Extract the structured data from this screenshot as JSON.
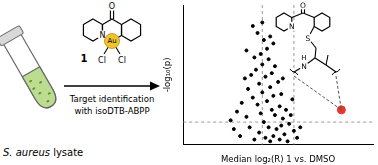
{
  "chart_data": {
    "type": "scatter",
    "x_label": "Median log₂(R) 1 vs. DMSO",
    "y_label": "-log₁₀(p)",
    "x": [
      -0.5,
      -0.3,
      0.1,
      -0.8,
      0.4,
      -1.2,
      -0.1,
      0.6,
      -1.5,
      0.2,
      -0.6,
      -0.9,
      0.3,
      -0.2,
      -1.1,
      0.7,
      -1.8,
      -0.4,
      0.1,
      -1.3,
      -0.7,
      0.5,
      -2.0,
      -0.3,
      -1.0,
      0.2,
      -1.6,
      -0.5,
      -1.2,
      0.0,
      -0.8,
      -1.9,
      -0.4,
      -1.4,
      0.3,
      -1.0,
      -0.6,
      -2.3,
      -1.7,
      -0.2,
      -1.1,
      -0.7,
      -1.5,
      -0.9,
      -1.3,
      -0.5,
      -1.0,
      -2.1,
      -2.6,
      1.0,
      1.2,
      -2.8,
      0.8,
      -2.4,
      0.9,
      -3.0,
      1.4,
      -1.6,
      -0.3,
      -2.0
    ],
    "values": [
      0.2,
      0.5,
      0.3,
      0.4,
      0.6,
      0.7,
      0.9,
      0.2,
      0.3,
      1.1,
      1.0,
      1.3,
      1.5,
      1.7,
      1.8,
      1.2,
      1.0,
      2.0,
      2.2,
      2.3,
      2.5,
      2.0,
      1.6,
      2.8,
      3.0,
      2.9,
      2.7,
      3.3,
      3.5,
      3.6,
      3.9,
      3.2,
      4.1,
      4.3,
      3.8,
      4.6,
      4.9,
      2.4,
      4.0,
      4.5,
      5.2,
      5.5,
      5.0,
      6.0,
      6.4,
      6.2,
      7.0,
      3.8,
      1.9,
      0.8,
      0.4,
      0.9,
      1.7,
      0.5,
      2.6,
      1.4,
      1.0,
      6.8,
      5.8,
      5.4
    ],
    "color": "#000000",
    "xlim": [
      -6,
      6
    ],
    "ylim": [
      0,
      8
    ],
    "tick_labels": false,
    "grid": false,
    "threshold_x": [
      -1,
      1
    ],
    "threshold_y": 1.3,
    "highlight": {
      "x": 4,
      "y": 2,
      "color": "#e8372c"
    }
  },
  "diagram": {
    "sample": {
      "organism": "S. aureus",
      "text": "lysate"
    },
    "arrow_text": [
      "Target identification",
      "with isoDTB-ABPP"
    ],
    "compound": {
      "label": "1",
      "atoms": {
        "carbonyl": "O",
        "nitrogen": "N",
        "metal": "Au",
        "ligands": [
          "Cl",
          "Cl"
        ]
      }
    },
    "target_adduct": {
      "atoms": {
        "pyridine": "N",
        "carbonyl": "O",
        "sulfur": "S",
        "amide_h": "H",
        "amide_n": "N"
      }
    }
  }
}
